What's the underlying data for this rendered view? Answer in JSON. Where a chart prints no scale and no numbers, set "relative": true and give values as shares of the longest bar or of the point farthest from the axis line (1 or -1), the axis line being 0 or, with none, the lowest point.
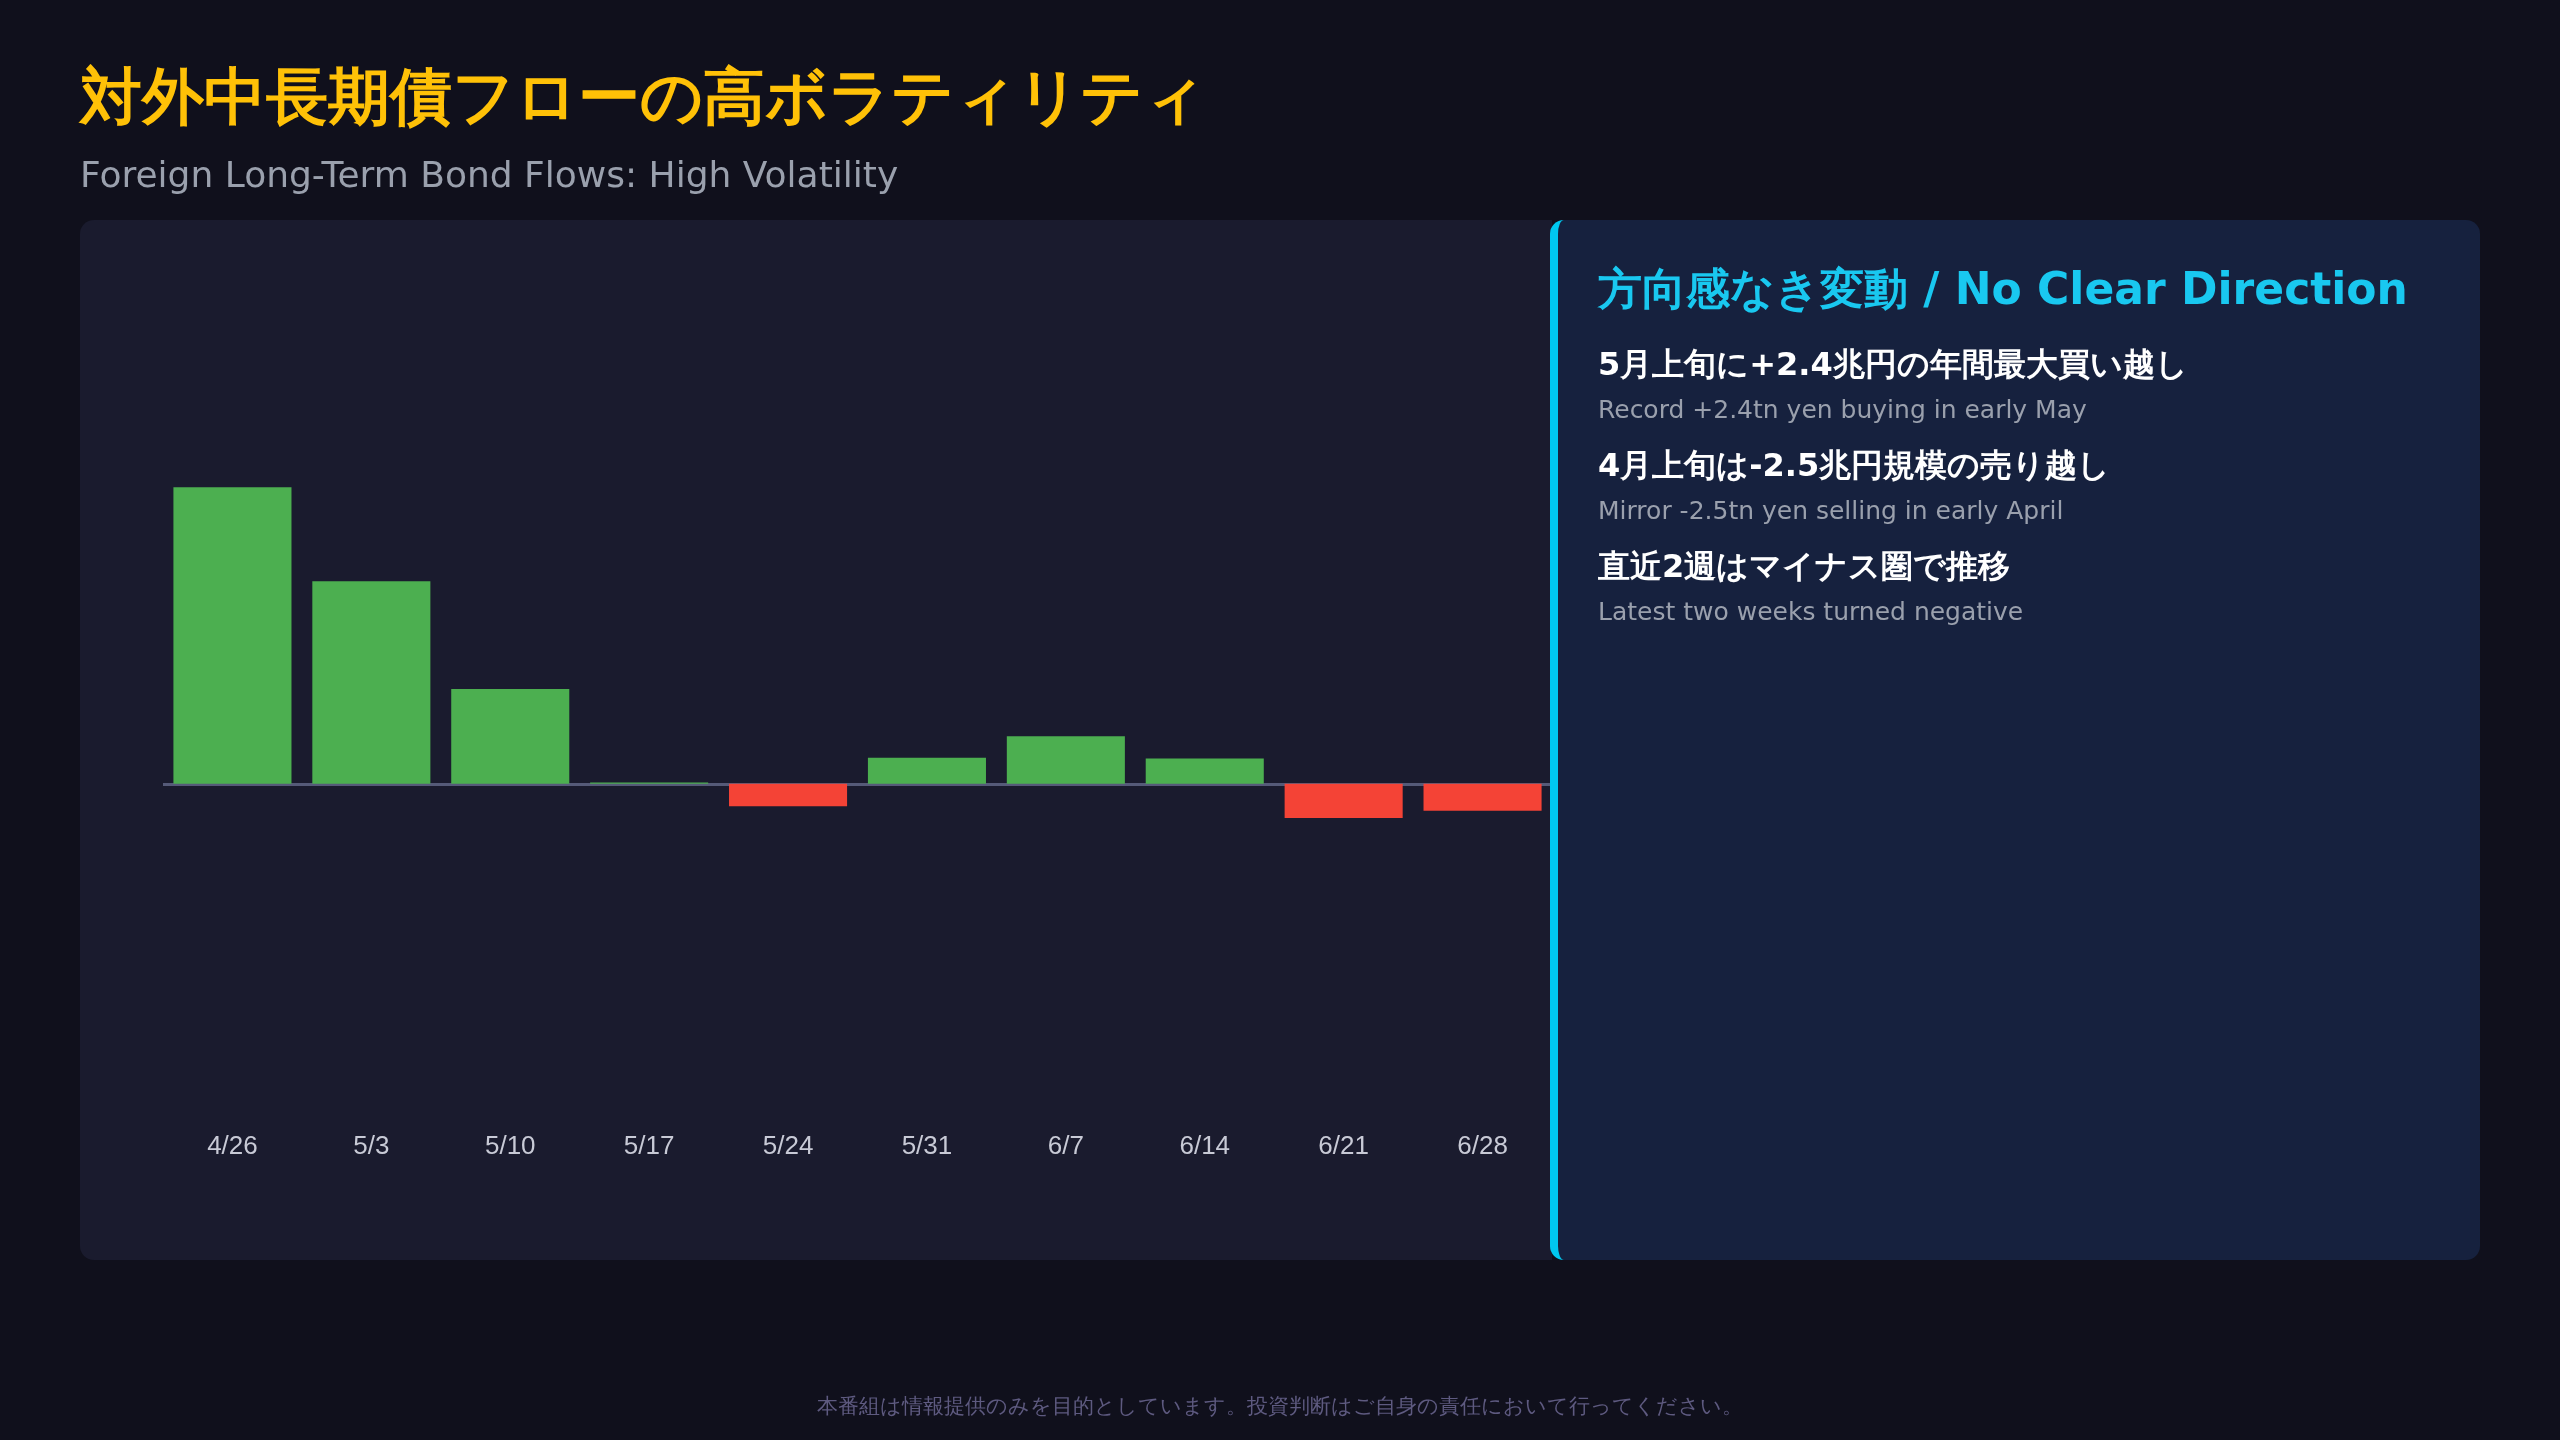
{
  "chart_data": [
    {
      "type": "bar",
      "title": "対外中長期債フローの高ボラティリティ",
      "subtitle": "Foreign Long-Term Bond Flows: High Volatility",
      "categories": [
        "4/26",
        "5/3",
        "5/10",
        "5/17",
        "5/24",
        "5/31",
        "6/7",
        "6/14",
        "6/21",
        "6/28"
      ],
      "values": [
        1,
        0.683,
        0.32,
        0.004,
        -0.076,
        0.088,
        0.16,
        0.085,
        -0.115,
        -0.091
      ],
      "colors": [
        "#4caf50",
        "#4caf50",
        "#4caf50",
        "#4caf50",
        "#f44336",
        "#4caf50",
        "#4caf50",
        "#4caf50",
        "#f44336",
        "#f44336"
      ],
      "relative": true,
      "annotations": [
        "本番組は情報提供のみを目的としています。投資判断はご自身の責任において行ってください。"
      ]
    },
    {
      "type": "other",
      "title": "方向感なき変動 / No Clear Direction",
      "annotations": [
        "5月上旬に+2.4兆円の年間最大買い越し",
        "Record +2.4tn yen buying in early May",
        "4月上旬は-2.5兆円規模の売り越し",
        "Mirror -2.5tn yen selling in early April",
        "直近2週はマイナス圏で推移",
        "Latest two weeks turned negative"
      ]
    }
  ]
}
